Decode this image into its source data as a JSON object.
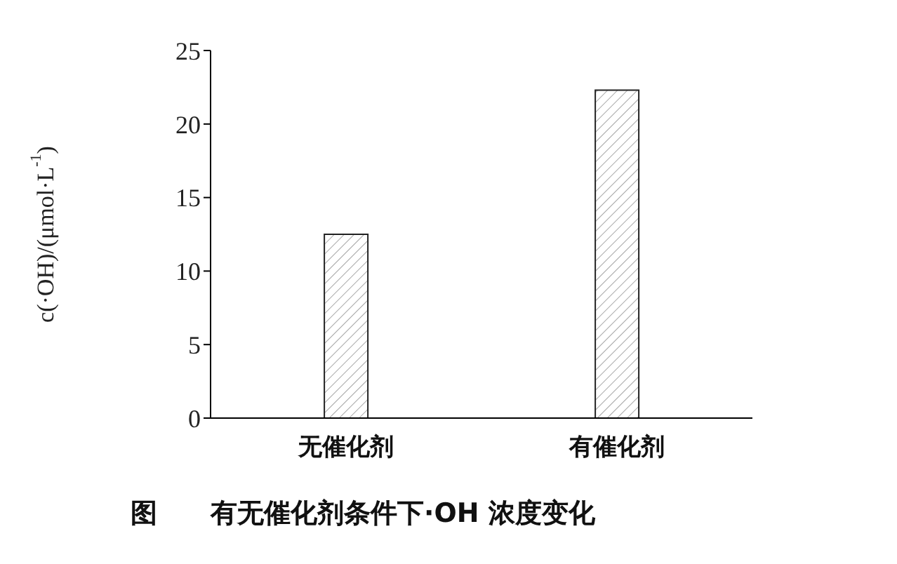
{
  "chart_data": {
    "type": "bar",
    "title": "图　　有无催化剂条件下·OH 浓度变化",
    "ylabel": "c(·OH)/(μmol·L$^{-1}$)",
    "categories": [
      "无催化剂",
      "有催化剂"
    ],
    "values": [
      12.5,
      22.3
    ],
    "color": "#222222",
    "ylim": [
      0,
      25
    ],
    "yticks": [
      0,
      5,
      10,
      15,
      20,
      25
    ],
    "grid": false
  }
}
